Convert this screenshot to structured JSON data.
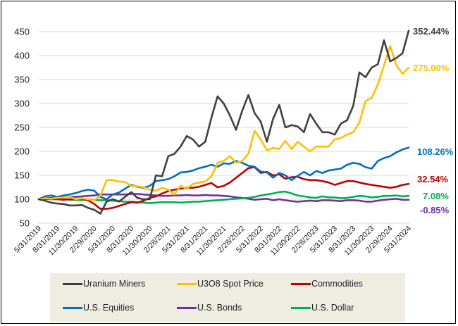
{
  "chart_data": {
    "type": "line",
    "title": "",
    "xlabel": "",
    "ylabel": "",
    "ylim": [
      50,
      450
    ],
    "yticks": [
      50,
      100,
      150,
      200,
      250,
      300,
      350,
      400,
      450
    ],
    "grid": true,
    "legend_position": "bottom",
    "x_tick_labels": [
      "5/31/2019",
      "8/31/2019",
      "11/30/2019",
      "2/29/2020",
      "5/31/2020",
      "8/31/2020",
      "11/30/2020",
      "2/28/2021",
      "5/31/2021",
      "8/31/2021",
      "11/30/2021",
      "2/28/2022",
      "5/31/2022",
      "8/31/2022",
      "11/30/2022",
      "2/28/2023",
      "5/31/2023",
      "8/31/2023",
      "11/30/2023",
      "2/29/2024",
      "5/31/2024"
    ],
    "x_frequency": "monthly",
    "x_start": "5/31/2019",
    "x_end": "5/31/2024",
    "series": [
      {
        "name": "Uranium Miners",
        "color": "#404040",
        "end_label": "352.44%",
        "values": [
          100,
          97,
          93,
          91,
          90,
          87,
          87,
          88,
          82,
          78,
          70,
          95,
          100,
          95,
          105,
          115,
          103,
          100,
          100,
          150,
          148,
          190,
          195,
          210,
          232,
          225,
          210,
          220,
          270,
          315,
          300,
          275,
          245,
          285,
          318,
          280,
          262,
          220,
          268,
          297,
          250,
          255,
          252,
          240,
          278,
          258,
          240,
          240,
          235,
          258,
          265,
          295,
          365,
          355,
          375,
          382,
          432,
          388,
          395,
          405,
          452
        ]
      },
      {
        "name": "U3O8 Spot Price",
        "color": "#ffc000",
        "end_label": "275.00%",
        "values": [
          100,
          102,
          101,
          103,
          104,
          105,
          100,
          102,
          100,
          98,
          108,
          140,
          140,
          137,
          136,
          128,
          127,
          125,
          120,
          118,
          124,
          120,
          110,
          128,
          122,
          132,
          135,
          137,
          148,
          176,
          180,
          190,
          176,
          180,
          195,
          243,
          225,
          202,
          207,
          205,
          222,
          205,
          220,
          210,
          200,
          210,
          210,
          210,
          225,
          228,
          235,
          240,
          260,
          305,
          312,
          340,
          380,
          420,
          380,
          362,
          375
        ]
      },
      {
        "name": "Commodities",
        "color": "#c00000",
        "end_label": "32.54%",
        "values": [
          100,
          101,
          100,
          100,
          99,
          100,
          100,
          101,
          98,
          90,
          80,
          80,
          82,
          86,
          90,
          94,
          93,
          97,
          103,
          106,
          112,
          117,
          120,
          122,
          124,
          124,
          126,
          130,
          134,
          125,
          128,
          135,
          145,
          155,
          165,
          167,
          155,
          157,
          150,
          152,
          143,
          146,
          147,
          142,
          140,
          140,
          138,
          135,
          130,
          134,
          138,
          138,
          135,
          132,
          130,
          128,
          126,
          124,
          126,
          130,
          132
        ]
      },
      {
        "name": "U.S. Equities",
        "color": "#0070c0",
        "end_label": "108.26%",
        "values": [
          100,
          106,
          108,
          105,
          108,
          110,
          113,
          117,
          120,
          118,
          105,
          100,
          110,
          114,
          122,
          130,
          126,
          124,
          128,
          138,
          140,
          142,
          148,
          156,
          157,
          160,
          165,
          168,
          172,
          168,
          175,
          174,
          180,
          176,
          170,
          168,
          158,
          156,
          145,
          155,
          150,
          140,
          149,
          157,
          150,
          159,
          155,
          160,
          162,
          164,
          172,
          176,
          174,
          167,
          164,
          180,
          186,
          190,
          198,
          204,
          208
        ]
      },
      {
        "name": "U.S. Bonds",
        "color": "#7030a0",
        "end_label": "-0.85%",
        "values": [
          100,
          102,
          103,
          104,
          104,
          105,
          105,
          106,
          107,
          108,
          110,
          110,
          110,
          110,
          110,
          111,
          111,
          110,
          109,
          108,
          107,
          107,
          108,
          108,
          109,
          108,
          108,
          109,
          108,
          108,
          107,
          106,
          104,
          103,
          101,
          99,
          100,
          101,
          98,
          100,
          98,
          96,
          95,
          96,
          97,
          96,
          98,
          98,
          97,
          96,
          98,
          98,
          97,
          95,
          95,
          97,
          99,
          100,
          101,
          99,
          99
        ]
      },
      {
        "name": "U.S. Dollar",
        "color": "#00b050",
        "end_label": "7.08%",
        "values": [
          100,
          100,
          101,
          100,
          100,
          99,
          99,
          98,
          100,
          99,
          98,
          98,
          97,
          96,
          95,
          95,
          94,
          93,
          92,
          93,
          94,
          94,
          94,
          93,
          94,
          95,
          95,
          96,
          97,
          98,
          99,
          100,
          101,
          102,
          103,
          105,
          108,
          110,
          112,
          115,
          116,
          112,
          108,
          106,
          104,
          103,
          106,
          104,
          104,
          102,
          103,
          105,
          107,
          106,
          104,
          105,
          107,
          107,
          108,
          106,
          107
        ]
      }
    ]
  }
}
